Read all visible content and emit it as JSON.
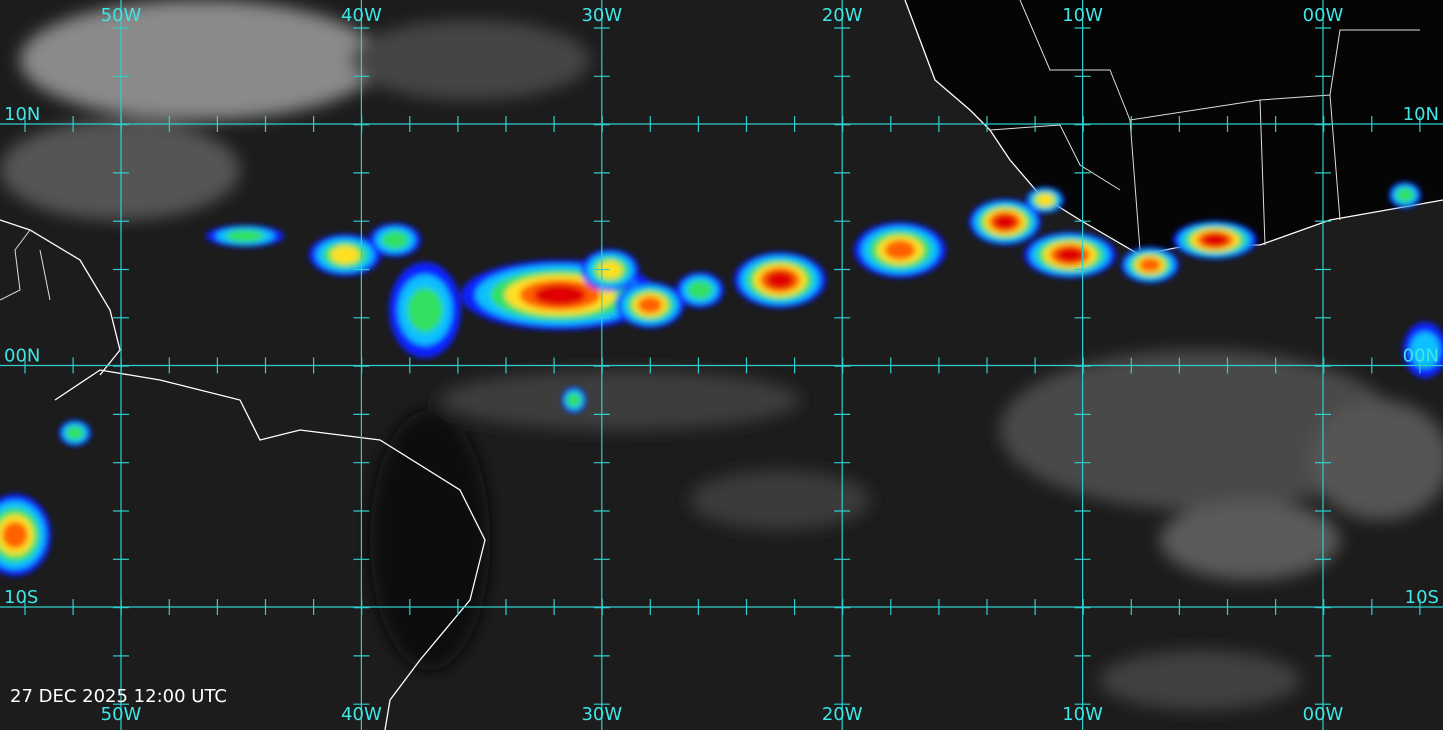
{
  "map": {
    "top_longitudes": [
      "50W",
      "40W",
      "30W",
      "20W",
      "10W",
      "00W"
    ],
    "bottom_longitudes": [
      "50W",
      "40W",
      "30W",
      "20W",
      "10W",
      "00W"
    ],
    "left_latitudes": [
      "10N",
      "00N",
      "10S"
    ],
    "right_latitudes": [
      "10N",
      "00N",
      "10S"
    ],
    "timestamp": "27 DEC 2025 12:00 UTC"
  }
}
